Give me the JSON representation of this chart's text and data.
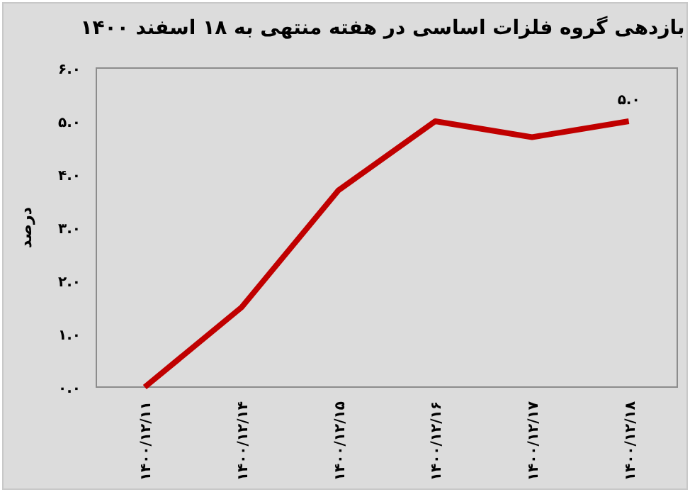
{
  "chart_data": {
    "type": "line",
    "title": "بازدهی گروه فلزات اساسی در هفته منتهی به ۱۸ اسفند ۱۴۰۰",
    "ylabel": "درصد",
    "categories": [
      "۱۴۰۰/۱۲/۱۱",
      "۱۴۰۰/۱۲/۱۴",
      "۱۴۰۰/۱۲/۱۵",
      "۱۴۰۰/۱۲/۱۶",
      "۱۴۰۰/۱۲/۱۷",
      "۱۴۰۰/۱۲/۱۸"
    ],
    "values": [
      0,
      1.5,
      3.7,
      5.0,
      4.7,
      5.0
    ],
    "value_labels": [
      null,
      null,
      null,
      null,
      null,
      "۵.۰"
    ],
    "color": "#c00000",
    "ylim": [
      0,
      6
    ],
    "yticks": [
      {
        "value": 0,
        "label": "۰.۰"
      },
      {
        "value": 1,
        "label": "۱.۰"
      },
      {
        "value": 2,
        "label": "۲.۰"
      },
      {
        "value": 3,
        "label": "۳.۰"
      },
      {
        "value": 4,
        "label": "۴.۰"
      },
      {
        "value": 5,
        "label": "۵.۰"
      },
      {
        "value": 6,
        "label": "۶.۰"
      }
    ]
  }
}
